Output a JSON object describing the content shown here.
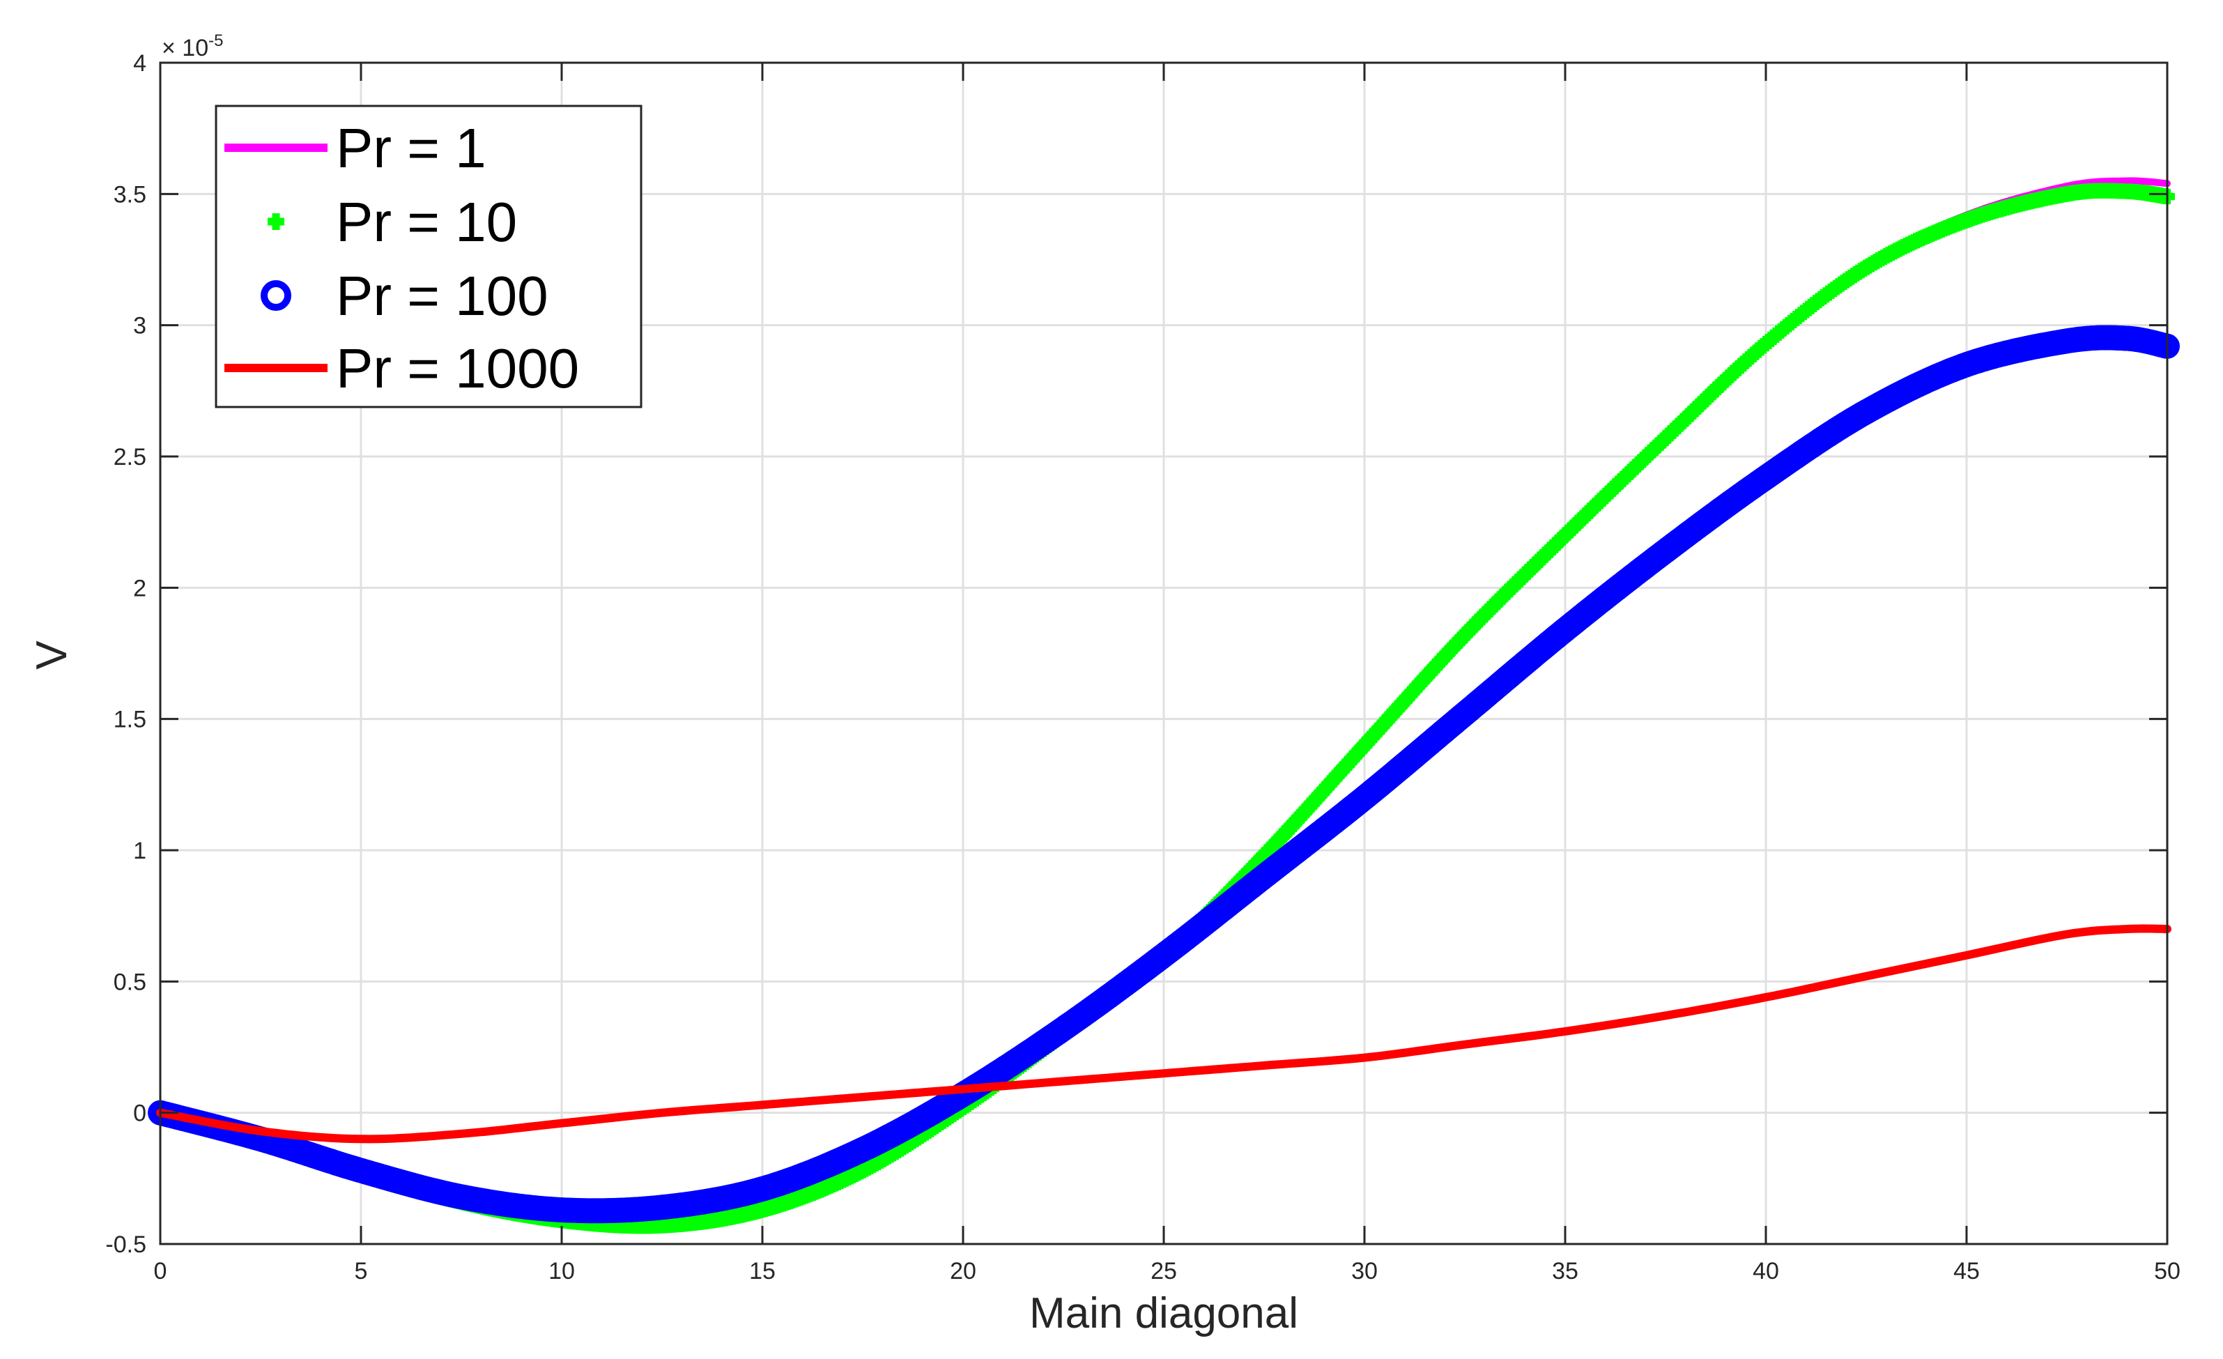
{
  "chart_data": {
    "type": "line",
    "title": "",
    "xlabel": "Main diagonal",
    "ylabel": "V",
    "xlim": [
      0,
      50
    ],
    "ylim": [
      -0.5,
      4
    ],
    "y_exponent_label": "× 10",
    "y_exponent_power": "-5",
    "xticks": [
      0,
      5,
      10,
      15,
      20,
      25,
      30,
      35,
      40,
      45,
      50
    ],
    "yticks": [
      -0.5,
      0,
      0.5,
      1,
      1.5,
      2,
      2.5,
      3,
      3.5,
      4
    ],
    "xtick_labels": [
      "0",
      "5",
      "10",
      "15",
      "20",
      "25",
      "30",
      "35",
      "40",
      "45",
      "50"
    ],
    "ytick_labels": [
      "-0.5",
      "0",
      "0.5",
      "1",
      "1.5",
      "2",
      "2.5",
      "3",
      "3.5",
      "4"
    ],
    "grid": true,
    "legend_position": "top-left",
    "series": [
      {
        "name": "Pr = 1",
        "color": "#ff00ff",
        "style": "line",
        "x": [
          0,
          2.5,
          5,
          7.5,
          10,
          12.5,
          15,
          17.5,
          20,
          22.5,
          25,
          27.5,
          30,
          32.5,
          35,
          37.5,
          40,
          42.5,
          45,
          47.5,
          49,
          50
        ],
        "y": [
          0,
          -0.1,
          -0.23,
          -0.34,
          -0.41,
          -0.43,
          -0.37,
          -0.22,
          0.02,
          0.3,
          0.6,
          0.98,
          1.4,
          1.82,
          2.2,
          2.57,
          2.93,
          3.23,
          3.42,
          3.53,
          3.55,
          3.54
        ]
      },
      {
        "name": "Pr = 10",
        "color": "#00ff00",
        "style": "marker-plus",
        "x": [
          0,
          2.5,
          5,
          7.5,
          10,
          12.5,
          15,
          17.5,
          20,
          22.5,
          25,
          27.5,
          30,
          32.5,
          35,
          37.5,
          40,
          42.5,
          45,
          47.5,
          49,
          50
        ],
        "y": [
          0,
          -0.1,
          -0.23,
          -0.34,
          -0.41,
          -0.43,
          -0.37,
          -0.22,
          0.02,
          0.3,
          0.6,
          0.98,
          1.4,
          1.82,
          2.2,
          2.57,
          2.93,
          3.22,
          3.4,
          3.5,
          3.51,
          3.49
        ]
      },
      {
        "name": "Pr = 100",
        "color": "#0000ff",
        "style": "marker-circle",
        "x": [
          0,
          2.5,
          5,
          7.5,
          10,
          12.5,
          15,
          17.5,
          20,
          22.5,
          25,
          27.5,
          30,
          32.5,
          35,
          37.5,
          40,
          42.5,
          45,
          47.5,
          49,
          50
        ],
        "y": [
          0,
          -0.1,
          -0.22,
          -0.32,
          -0.37,
          -0.36,
          -0.29,
          -0.14,
          0.07,
          0.32,
          0.6,
          0.9,
          1.2,
          1.52,
          1.84,
          2.14,
          2.42,
          2.67,
          2.85,
          2.94,
          2.95,
          2.92
        ]
      },
      {
        "name": "Pr = 1000",
        "color": "#ff0000",
        "style": "line",
        "x": [
          0,
          2.5,
          5,
          7.5,
          10,
          12.5,
          15,
          17.5,
          20,
          22.5,
          25,
          27.5,
          30,
          32.5,
          35,
          37.5,
          40,
          42.5,
          45,
          47.5,
          49,
          50
        ],
        "y": [
          0,
          -0.07,
          -0.1,
          -0.08,
          -0.04,
          0,
          0.03,
          0.06,
          0.09,
          0.12,
          0.15,
          0.18,
          0.21,
          0.26,
          0.31,
          0.37,
          0.44,
          0.52,
          0.6,
          0.68,
          0.7,
          0.7
        ]
      }
    ]
  }
}
